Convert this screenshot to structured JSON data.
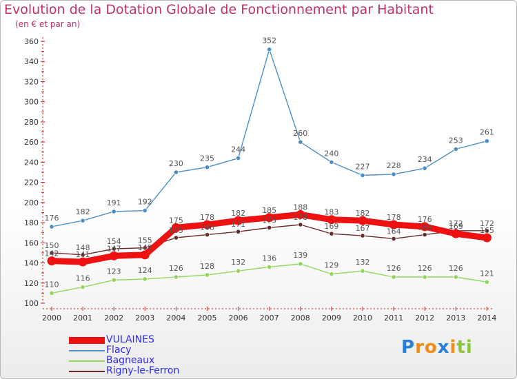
{
  "chart_data": {
    "type": "line",
    "title": "Evolution de la Dotation Globale de Fonctionnement par Habitant",
    "subtitle": "(en € et par an)",
    "xlabel": "",
    "ylabel": "",
    "ylim": [
      100,
      360
    ],
    "yticks": [
      100,
      120,
      140,
      160,
      180,
      200,
      220,
      240,
      260,
      280,
      300,
      320,
      340,
      360
    ],
    "categories": [
      "2000",
      "2001",
      "2002",
      "2003",
      "2004",
      "2005",
      "2006",
      "2007",
      "2008",
      "2009",
      "2010",
      "2011",
      "2012",
      "2013",
      "2014"
    ],
    "grid": false,
    "legend_position": "bottom-left",
    "series": [
      {
        "name": "Flacy",
        "color": "#4a8fc7",
        "values": [
          176,
          182,
          191,
          192,
          230,
          235,
          244,
          352,
          260,
          240,
          227,
          228,
          234,
          253,
          261
        ],
        "labels": [
          "176",
          "182",
          "191",
          "192",
          "230",
          "235",
          "244",
          "352",
          "260",
          "240",
          "227",
          "228",
          "234",
          "253",
          "261"
        ]
      },
      {
        "name": "Bagneaux",
        "color": "#8fd65a",
        "values": [
          110,
          116,
          123,
          124,
          126,
          128,
          132,
          136,
          139,
          129,
          132,
          126,
          126,
          126,
          121
        ],
        "labels": [
          "110",
          "116",
          "123",
          "124",
          "126",
          "128",
          "132",
          "136",
          "139",
          "129",
          "132",
          "126",
          "126",
          "126",
          "121"
        ]
      },
      {
        "name": "Rigny-le-Ferron",
        "color": "#6b2a2a",
        "values": [
          150,
          148,
          154,
          155,
          165,
          168,
          171,
          175,
          178,
          169,
          167,
          164,
          168,
          172,
          172
        ],
        "labels": [
          "150",
          "148",
          "154",
          "155",
          "165",
          "168",
          "171",
          "175",
          "178",
          "169",
          "167",
          "164",
          "168",
          "172",
          "172"
        ]
      },
      {
        "name": "VULAINES",
        "color": "#ee1111",
        "values": [
          142,
          141,
          147,
          148,
          175,
          178,
          182,
          185,
          188,
          183,
          182,
          178,
          176,
          169,
          165
        ],
        "labels": [
          "142",
          "141",
          "147",
          "148",
          "175",
          "178",
          "182",
          "185",
          "188",
          "183",
          "182",
          "178",
          "176",
          "169",
          "165"
        ]
      }
    ],
    "legend": [
      {
        "name": "VULAINES",
        "color": "#ee1111",
        "text_color": "#2a2aee",
        "thickness": 10
      },
      {
        "name": "Flacy",
        "color": "#4a8fc7",
        "text_color": "#2a2aee",
        "thickness": 2
      },
      {
        "name": "Bagneaux",
        "color": "#8fd65a",
        "text_color": "#2a2aee",
        "thickness": 2
      },
      {
        "name": "Rigny-le-Ferron",
        "color": "#6b2a2a",
        "text_color": "#2a2aee",
        "thickness": 2
      }
    ]
  },
  "colors": {
    "title": "#c0306a",
    "axis": "#c21a1a",
    "tick_text": "#333333",
    "label_text": "#555555"
  },
  "logo": {
    "letters": [
      {
        "char": "P",
        "color": "#2a7fd4"
      },
      {
        "char": "r",
        "color": "#f08c1a"
      },
      {
        "char": "o",
        "color": "#f08c1a"
      },
      {
        "char": "x",
        "color": "#2a7fd4"
      },
      {
        "char": "i",
        "color": "#f08c1a"
      },
      {
        "char": "t",
        "color": "#8cc63f"
      },
      {
        "char": "i",
        "color": "#8cc63f"
      }
    ]
  }
}
